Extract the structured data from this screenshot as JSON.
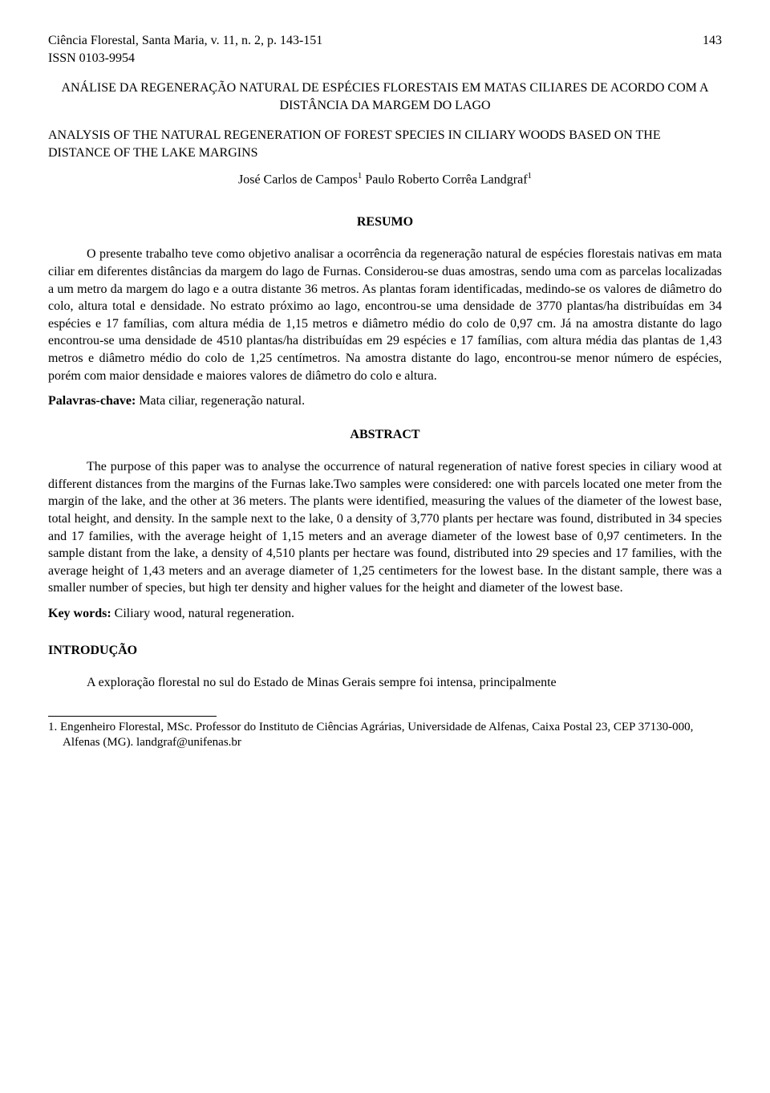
{
  "header": {
    "journal": "Ciência Florestal, Santa Maria, v. 11, n. 2, p. 143-151",
    "page_number": "143",
    "issn": "ISSN 0103-9954"
  },
  "title_pt": "ANÁLISE DA REGENERAÇÃO NATURAL DE ESPÉCIES FLORESTAIS EM MATAS CILIARES DE ACORDO COM A DISTÂNCIA DA MARGEM DO LAGO",
  "title_en": "ANALYSIS OF THE NATURAL REGENERATION OF FOREST SPECIES IN CILIARY WOODS BASED ON THE DISTANCE OF THE LAKE MARGINS",
  "authors": {
    "author1": "José Carlos de Campos",
    "sup1": "1",
    "spacer": "    ",
    "author2": "Paulo Roberto Corrêa Landgraf",
    "sup2": "1"
  },
  "resumo": {
    "heading": "RESUMO",
    "body": "O presente trabalho teve como objetivo analisar a ocorrência da regeneração natural de espécies florestais nativas em mata ciliar em diferentes distâncias da margem do lago de Furnas. Considerou-se duas amostras, sendo uma com as parcelas localizadas a um metro da margem do lago e a outra distante 36 metros. As plantas foram identificadas, medindo-se os valores de diâmetro do colo, altura total e densidade. No estrato próximo ao lago, encontrou-se uma densidade de 3770 plantas/ha distribuídas em 34 espécies e 17 famílias, com altura média de 1,15 metros e diâmetro médio do colo de 0,97 cm. Já na amostra distante do lago encontrou-se uma densidade de 4510 plantas/ha distribuídas em 29 espécies e 17 famílias, com altura média das plantas de 1,43 metros e diâmetro médio do colo de 1,25 centímetros. Na amostra distante do lago, encontrou-se menor número de espécies, porém com maior densidade e maiores valores de diâmetro do colo e altura.",
    "keywords_label": "Palavras-chave:",
    "keywords_text": " Mata ciliar, regeneração natural."
  },
  "abstract": {
    "heading": "ABSTRACT",
    "body": "The purpose of this paper was to analyse the occurrence of natural regeneration of native forest species in ciliary wood at different distances from the margins of the Furnas lake.Two samples were considered: one with parcels located one meter from the margin of the lake, and the other at 36 meters. The plants were identified, measuring the values of the diameter of the lowest base, total height, and density. In the sample next to the lake, 0 a density of 3,770 plants per hectare was found, distributed in 34 species and 17 families, with the average height of 1,15 meters and an average diameter of the lowest base of 0,97 centimeters. In the sample distant from the lake, a density of 4,510 plants per hectare was found, distributed into 29 species and 17 families, with the average height of 1,43 meters and an average diameter of 1,25 centimeters for the lowest base. In the distant sample, there was a smaller number of species, but high ter density and higher values for the height and diameter of the lowest base.",
    "keywords_label": "Key words:",
    "keywords_text": " Ciliary wood, natural regeneration."
  },
  "introducao": {
    "heading": "INTRODUÇÃO",
    "body": "A exploração florestal no sul do Estado de Minas Gerais sempre foi intensa, principalmente"
  },
  "footnote": {
    "text": "1. Engenheiro Florestal, MSc. Professor do Instituto de Ciências Agrárias, Universidade de Alfenas, Caixa Postal 23, CEP 37130-000, Alfenas (MG). landgraf@unifenas.br"
  }
}
